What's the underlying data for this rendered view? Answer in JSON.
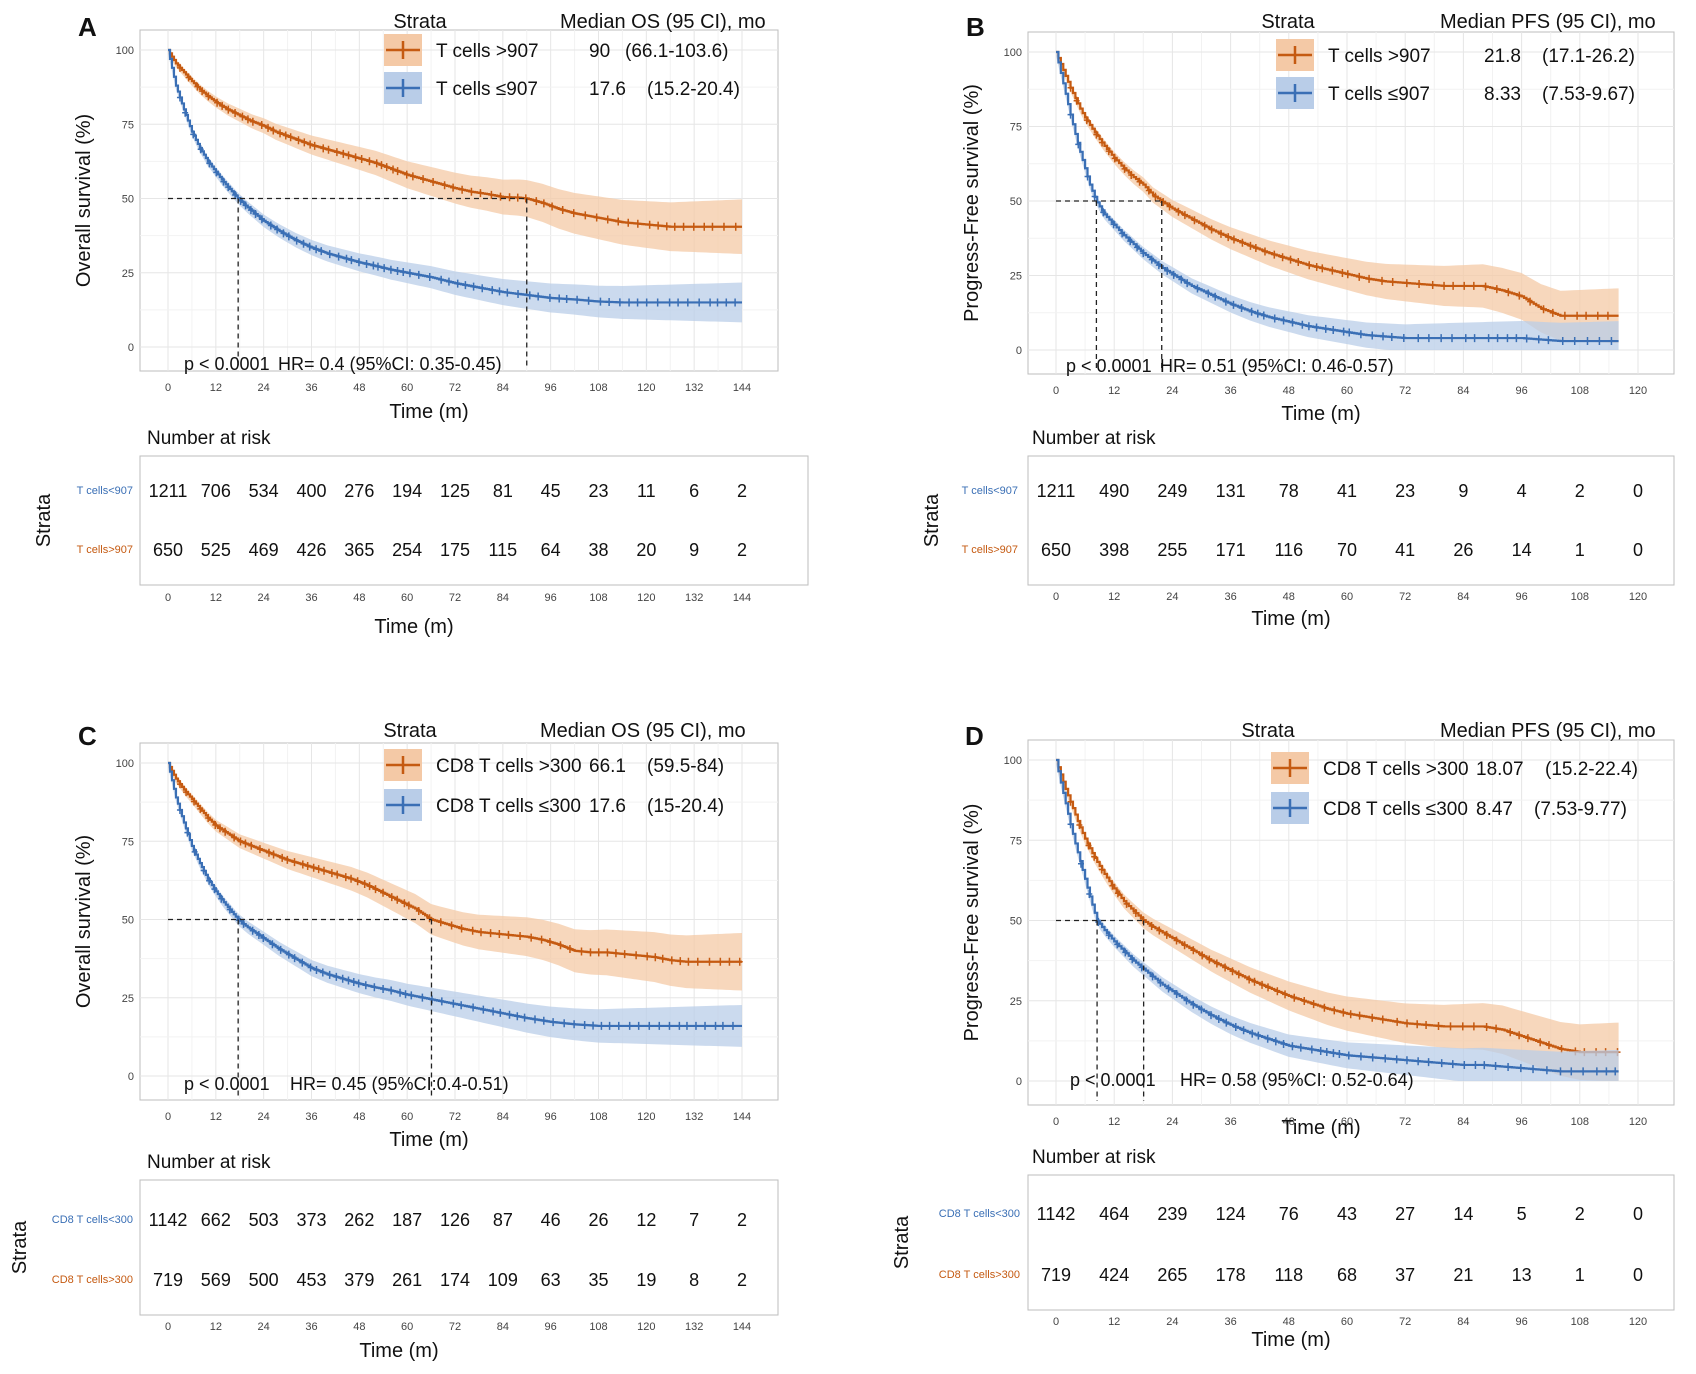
{
  "colors": {
    "high": "#C55A11",
    "low": "#3A6FB5",
    "high_ci": "#F4C9A6",
    "low_ci": "#B9CDE8",
    "grid": "#E6E6E6",
    "frame": "#BDBDBD"
  },
  "common": {
    "strata_header": "Strata",
    "risk_title": "Number  at  risk",
    "strata_axis_label": "Strata",
    "x_label": "Time (m)"
  },
  "chart_data": [
    {
      "panel": "A",
      "type": "line",
      "y_label": "Overall  survival  (%)",
      "metric_header": "Median OS (95 CI), mo",
      "xlim": [
        0,
        144
      ],
      "x_ticks": [
        0,
        12,
        24,
        36,
        48,
        60,
        72,
        84,
        96,
        108,
        120,
        132,
        144
      ],
      "ylim": [
        0,
        100
      ],
      "y_ticks": [
        0,
        25,
        50,
        75,
        100
      ],
      "stats_p": "p < 0.0001",
      "stats_hr": "HR= 0.4 (95%CI: 0.35-0.45)",
      "median_lines": [
        17.6,
        90
      ],
      "series": [
        {
          "name": "T cells >907",
          "median": "90",
          "ci": "(66.1-103.6)",
          "group": "high",
          "end": 144,
          "x": [
            0,
            2,
            4,
            6,
            8,
            10,
            12,
            15,
            18,
            21,
            24,
            27,
            30,
            33,
            36,
            40,
            44,
            48,
            52,
            56,
            60,
            64,
            68,
            72,
            76,
            80,
            84,
            88,
            90,
            94,
            98,
            102,
            106,
            110,
            114,
            118,
            122,
            126,
            130,
            134,
            138,
            144
          ],
          "y": [
            100,
            95.5,
            92.5,
            89.5,
            86.8,
            84.5,
            82.5,
            80,
            78,
            76,
            74.5,
            72.5,
            71,
            69.5,
            68,
            66.5,
            65,
            63.5,
            62,
            60,
            58,
            56.5,
            55,
            53.5,
            52.3,
            51.5,
            50.5,
            50.3,
            50,
            48.5,
            46.5,
            45,
            44,
            43,
            42,
            41.5,
            41,
            40.5,
            40.5,
            40.5,
            40.5,
            40.5
          ]
        },
        {
          "name": "T cells ≤907",
          "median": "17.6",
          "ci": "(15.2-20.4)",
          "group": "low",
          "end": 144,
          "x": [
            0,
            2,
            4,
            6,
            8,
            10,
            12,
            14,
            17.6,
            20,
            24,
            28,
            32,
            36,
            40,
            44,
            48,
            52,
            56,
            60,
            66,
            72,
            78,
            84,
            90,
            96,
            102,
            108,
            114,
            120,
            126,
            132,
            144
          ],
          "y": [
            100,
            88,
            80,
            72.5,
            67,
            62.5,
            59,
            55.5,
            50,
            47,
            42.5,
            39,
            36,
            33.5,
            31.5,
            30,
            28.5,
            27.3,
            26,
            25,
            23.5,
            21.5,
            20,
            18.5,
            17.5,
            16.5,
            16,
            15.3,
            15,
            15,
            15,
            15,
            15
          ]
        }
      ],
      "risk": {
        "labels": [
          "T cells<907",
          "T cells>907"
        ],
        "groups": [
          "low",
          "high"
        ],
        "rows": [
          [
            "1211",
            "706",
            "534",
            "400",
            "276",
            "194",
            "125",
            "81",
            "45",
            "23",
            "11",
            "6",
            "2"
          ],
          [
            "650",
            "525",
            "469",
            "426",
            "365",
            "254",
            "175",
            "115",
            "64",
            "38",
            "20",
            "9",
            "2"
          ]
        ]
      }
    },
    {
      "panel": "B",
      "type": "line",
      "y_label": "Progress-Free  survival  (%)",
      "metric_header": "Median PFS (95 CI), mo",
      "xlim": [
        0,
        120
      ],
      "x_ticks": [
        0,
        12,
        24,
        36,
        48,
        60,
        72,
        84,
        96,
        108,
        120
      ],
      "ylim": [
        0,
        100
      ],
      "y_ticks": [
        0,
        25,
        50,
        75,
        100
      ],
      "stats_p": "p < 0.0001",
      "stats_hr": "HR= 0.51 (95%CI: 0.46-0.57)",
      "median_lines": [
        8.33,
        21.8
      ],
      "series": [
        {
          "name": "T cells >907",
          "median": "21.8",
          "ci": "(17.1-26.2)",
          "group": "high",
          "end": 116,
          "x": [
            0,
            1,
            2,
            3,
            4,
            5,
            6,
            8,
            10,
            12,
            14,
            16,
            18,
            20,
            21.8,
            24,
            28,
            32,
            36,
            40,
            44,
            48,
            52,
            56,
            60,
            64,
            68,
            72,
            76,
            80,
            84,
            88,
            92,
            96,
            100,
            104,
            108,
            116
          ],
          "y": [
            100,
            96,
            92,
            88,
            84.5,
            81,
            78,
            73,
            68.5,
            64.5,
            61,
            58,
            55.5,
            52,
            50,
            47.5,
            44,
            40.5,
            37.5,
            35,
            32.5,
            30.5,
            28.5,
            27,
            25.5,
            24,
            23,
            22.5,
            22,
            21.5,
            21.5,
            21.5,
            20,
            18,
            14,
            11.5,
            11.5,
            11.5
          ]
        },
        {
          "name": "T cells ≤907",
          "median": "8.33",
          "ci": "(7.53-9.67)",
          "group": "low",
          "end": 116,
          "x": [
            0,
            1,
            2,
            3,
            4,
            5,
            6,
            7,
            8.33,
            10,
            12,
            14,
            16,
            18,
            20,
            22,
            24,
            28,
            32,
            36,
            40,
            44,
            48,
            52,
            56,
            60,
            64,
            68,
            72,
            76,
            80,
            84,
            88,
            92,
            96,
            100,
            104,
            108,
            116
          ],
          "y": [
            100,
            93,
            86,
            79,
            72.5,
            66.5,
            61,
            55.5,
            50,
            45.5,
            42,
            38.5,
            35.5,
            32.5,
            30,
            27.5,
            25.5,
            21.5,
            18.5,
            15.5,
            13,
            11,
            9.5,
            8,
            7,
            6,
            5,
            4.5,
            4,
            4,
            4,
            4,
            4,
            4,
            4,
            3.5,
            3,
            3,
            3
          ]
        }
      ],
      "risk": {
        "labels": [
          "T cells<907",
          "T cells>907"
        ],
        "groups": [
          "low",
          "high"
        ],
        "rows": [
          [
            "1211",
            "490",
            "249",
            "131",
            "78",
            "41",
            "23",
            "9",
            "4",
            "2",
            "0"
          ],
          [
            "650",
            "398",
            "255",
            "171",
            "116",
            "70",
            "41",
            "26",
            "14",
            "1",
            "0"
          ]
        ]
      }
    },
    {
      "panel": "C",
      "type": "line",
      "y_label": "Overall  survival  (%)",
      "metric_header": "Median OS (95 CI), mo",
      "xlim": [
        0,
        144
      ],
      "x_ticks": [
        0,
        12,
        24,
        36,
        48,
        60,
        72,
        84,
        96,
        108,
        120,
        132,
        144
      ],
      "ylim": [
        0,
        100
      ],
      "y_ticks": [
        0,
        25,
        50,
        75,
        100
      ],
      "stats_p": "p < 0.0001",
      "stats_hr": "HR= 0.45 (95%CI:0.4-0.51)",
      "median_lines": [
        17.6,
        66.1
      ],
      "series": [
        {
          "name": "CD8 T cells >300",
          "median": "66.1",
          "ci": "(59.5-84)",
          "group": "high",
          "end": 144,
          "x": [
            0,
            2,
            4,
            6,
            8,
            10,
            12,
            15,
            18,
            21,
            24,
            27,
            30,
            34,
            38,
            42,
            46,
            50,
            54,
            58,
            62,
            66.1,
            70,
            74,
            78,
            82,
            86,
            90,
            94,
            98,
            102,
            106,
            110,
            114,
            118,
            122,
            126,
            130,
            134,
            138,
            144
          ],
          "y": [
            100,
            95,
            91.5,
            88.5,
            85.5,
            82.5,
            80,
            77.5,
            75,
            73.5,
            72,
            70.5,
            69,
            67.5,
            66,
            64.5,
            63,
            61,
            58.5,
            56,
            53.5,
            50,
            48.5,
            47,
            46,
            45.5,
            45,
            44.5,
            43.5,
            42,
            40,
            39.5,
            39.5,
            39,
            38.5,
            38,
            37,
            36.5,
            36.5,
            36.5,
            36.5
          ]
        },
        {
          "name": "CD8 T cells ≤300",
          "median": "17.6",
          "ci": "(15-20.4)",
          "group": "low",
          "end": 144,
          "x": [
            0,
            2,
            4,
            6,
            8,
            10,
            12,
            14,
            17.6,
            20,
            24,
            28,
            32,
            36,
            40,
            44,
            48,
            52,
            56,
            60,
            66,
            72,
            78,
            84,
            90,
            96,
            102,
            108,
            114,
            120,
            126,
            132,
            144
          ],
          "y": [
            100,
            89,
            81,
            73.5,
            68,
            63,
            59,
            55.5,
            50,
            47.5,
            44,
            40.5,
            37.5,
            34.5,
            32.5,
            31,
            29.5,
            28.3,
            27.3,
            26,
            24.5,
            23,
            21.5,
            20,
            18.5,
            17.3,
            16.5,
            16,
            16,
            16,
            16,
            16,
            16
          ]
        }
      ],
      "risk": {
        "labels": [
          "CD8 T cells<300",
          "CD8 T cells>300"
        ],
        "groups": [
          "low",
          "high"
        ],
        "rows": [
          [
            "1142",
            "662",
            "503",
            "373",
            "262",
            "187",
            "126",
            "87",
            "46",
            "26",
            "12",
            "7",
            "2"
          ],
          [
            "719",
            "569",
            "500",
            "453",
            "379",
            "261",
            "174",
            "109",
            "63",
            "35",
            "19",
            "8",
            "2"
          ]
        ]
      }
    },
    {
      "panel": "D",
      "type": "line",
      "y_label": "Progress-Free  survival  (%)",
      "metric_header": "Median PFS (95 CI), mo",
      "xlim": [
        0,
        120
      ],
      "x_ticks": [
        0,
        12,
        24,
        36,
        48,
        60,
        72,
        84,
        96,
        108,
        120
      ],
      "ylim": [
        0,
        100
      ],
      "y_ticks": [
        0,
        25,
        50,
        75,
        100
      ],
      "stats_p": "p < 0.0001",
      "stats_hr": "HR= 0.58 (95%CI: 0.52-0.64)",
      "median_lines": [
        8.47,
        18.07
      ],
      "series": [
        {
          "name": "CD8 T cells >300",
          "median": "18.07",
          "ci": "(15.2-22.4)",
          "group": "high",
          "end": 116,
          "x": [
            0,
            1,
            2,
            3,
            4,
            5,
            6,
            8,
            10,
            12,
            14,
            16,
            18.07,
            20,
            24,
            28,
            32,
            36,
            40,
            44,
            48,
            52,
            56,
            60,
            64,
            68,
            72,
            76,
            80,
            84,
            88,
            92,
            96,
            100,
            104,
            108,
            116
          ],
          "y": [
            100,
            95.5,
            91,
            87,
            83,
            79,
            75.5,
            69.5,
            64.5,
            60,
            56,
            53,
            50,
            48,
            44.5,
            41,
            37.5,
            34.5,
            31.5,
            29,
            26.5,
            24.5,
            22.5,
            21,
            20,
            19,
            18,
            17.5,
            17,
            17,
            17,
            16,
            14,
            12,
            10,
            9,
            9
          ]
        },
        {
          "name": "CD8 T cells ≤300",
          "median": "8.47",
          "ci": "(7.53-9.77)",
          "group": "low",
          "end": 116,
          "x": [
            0,
            1,
            2,
            3,
            4,
            5,
            6,
            7,
            8.47,
            10,
            12,
            14,
            16,
            18,
            20,
            22,
            24,
            28,
            32,
            36,
            40,
            44,
            48,
            52,
            56,
            60,
            64,
            68,
            72,
            76,
            80,
            84,
            88,
            92,
            96,
            100,
            104,
            108,
            116
          ],
          "y": [
            100,
            93,
            86.5,
            80,
            74,
            68.5,
            63,
            57.5,
            50,
            47,
            43.5,
            40.5,
            37.5,
            35,
            32.5,
            30,
            28,
            24,
            20.5,
            17.5,
            15,
            13,
            11,
            10,
            9,
            8,
            7.5,
            7,
            6.5,
            6,
            5.5,
            5,
            5,
            4.5,
            4,
            3.5,
            3,
            3,
            3
          ]
        }
      ],
      "risk": {
        "labels": [
          "CD8 T cells<300",
          "CD8 T cells>300"
        ],
        "groups": [
          "low",
          "high"
        ],
        "rows": [
          [
            "1142",
            "464",
            "239",
            "124",
            "76",
            "43",
            "27",
            "14",
            "5",
            "2",
            "0"
          ],
          [
            "719",
            "424",
            "265",
            "178",
            "118",
            "68",
            "37",
            "21",
            "13",
            "1",
            "0"
          ]
        ]
      }
    }
  ]
}
